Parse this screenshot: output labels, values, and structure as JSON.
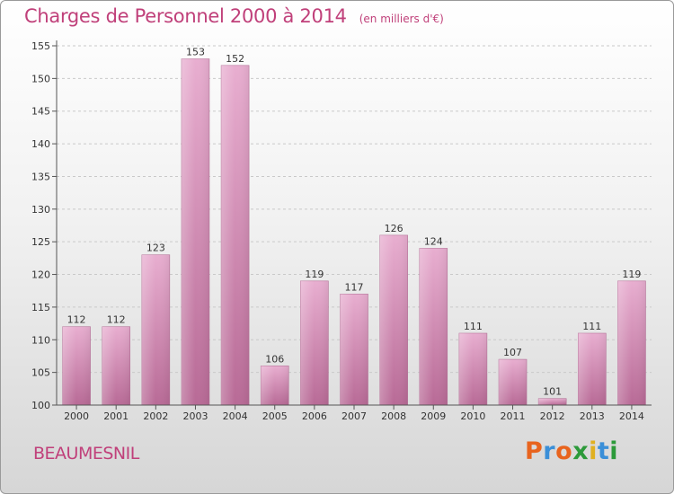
{
  "title": "Charges de Personnel 2000 à 2014",
  "unit": "(en milliers d'€)",
  "commune": "BEAUMESNIL",
  "logo": {
    "letters": [
      "P",
      "r",
      "o",
      "x",
      "i",
      "t",
      "i"
    ]
  },
  "colors": {
    "bar": "#d98ab5",
    "bar_light": "#e8aed0",
    "accent": "#c0407a"
  },
  "chart_data": {
    "type": "bar",
    "title": "Charges de Personnel 2000 à 2014",
    "categories": [
      "2000",
      "2001",
      "2002",
      "2003",
      "2004",
      "2005",
      "2006",
      "2007",
      "2008",
      "2009",
      "2010",
      "2011",
      "2012",
      "2013",
      "2014"
    ],
    "values": [
      112,
      112,
      123,
      153,
      152,
      106,
      119,
      117,
      126,
      124,
      111,
      107,
      101,
      111,
      119
    ],
    "ylim": [
      100,
      155
    ],
    "yticks": [
      100,
      105,
      110,
      115,
      120,
      125,
      130,
      135,
      140,
      145,
      150,
      155
    ],
    "grid": true
  }
}
